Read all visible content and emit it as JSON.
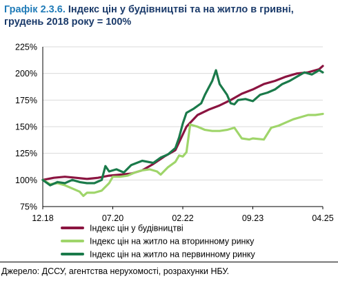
{
  "title": {
    "number": "Графік 2.3.6.",
    "text": "Індекс цін у будівництві та на житло в гривні, грудень 2018 року = 100%"
  },
  "source": "Джерело: ДССУ, агентства нерухомості, розрахунки НБУ.",
  "colors": {
    "construction": "#8b1440",
    "secondary": "#9fd56a",
    "primary": "#1a7a4a",
    "grid": "#d9d9d9"
  },
  "chart_data": {
    "type": "line",
    "xlabel": "",
    "ylabel": "",
    "x_range": [
      "2018-12",
      "2025-04"
    ],
    "ylim": [
      75,
      225
    ],
    "y_ticks": [
      "75%",
      "100%",
      "125%",
      "150%",
      "175%",
      "200%",
      "225%"
    ],
    "x_ticks": [
      {
        "label": "12.18",
        "date": "2018-12"
      },
      {
        "label": "07.20",
        "date": "2020-07"
      },
      {
        "label": "02.22",
        "date": "2022-02"
      },
      {
        "label": "09.23",
        "date": "2023-09"
      },
      {
        "label": "04.25",
        "date": "2025-04"
      }
    ],
    "grid": "horizontal",
    "legend": "bottom",
    "series": [
      {
        "name": "Індекс цін у будівництві",
        "key": "construction",
        "x": [
          "2018-12",
          "2019-03",
          "2019-06",
          "2019-09",
          "2019-12",
          "2020-03",
          "2020-06",
          "2020-09",
          "2020-12",
          "2021-03",
          "2021-06",
          "2021-09",
          "2021-12",
          "2022-03",
          "2022-06",
          "2022-09",
          "2022-12",
          "2023-03",
          "2023-06",
          "2023-09",
          "2023-12",
          "2024-03",
          "2024-06",
          "2024-09",
          "2024-12",
          "2025-03",
          "2025-04"
        ],
        "values": [
          100,
          102,
          103,
          102,
          101,
          102,
          104,
          105,
          106,
          109,
          115,
          122,
          128,
          150,
          161,
          166,
          170,
          175,
          181,
          185,
          190,
          193,
          197,
          200,
          201,
          204,
          207
        ]
      },
      {
        "name": "Індекс цін на житло на вторинному ринку",
        "key": "secondary",
        "x": [
          "2018-12",
          "2019-02",
          "2019-04",
          "2019-06",
          "2019-08",
          "2019-10",
          "2019-11",
          "2019-12",
          "2020-02",
          "2020-04",
          "2020-06",
          "2020-07",
          "2020-09",
          "2020-11",
          "2021-01",
          "2021-03",
          "2021-05",
          "2021-07",
          "2021-08",
          "2021-10",
          "2021-12",
          "2022-01",
          "2022-02",
          "2022-03",
          "2022-04",
          "2022-06",
          "2022-08",
          "2022-10",
          "2022-12",
          "2023-02",
          "2023-04",
          "2023-06",
          "2023-08",
          "2023-09",
          "2023-12",
          "2024-02",
          "2024-04",
          "2024-06",
          "2024-08",
          "2024-10",
          "2024-12",
          "2025-02",
          "2025-04"
        ],
        "values": [
          100,
          96,
          97,
          95,
          92,
          89,
          85,
          88,
          88,
          90,
          97,
          103,
          103,
          104,
          107,
          109,
          110,
          108,
          105,
          112,
          117,
          123,
          122,
          126,
          152,
          150,
          147,
          146,
          146,
          147,
          149,
          139,
          138,
          139,
          138,
          149,
          151,
          154,
          157,
          159,
          161,
          161,
          162
        ]
      },
      {
        "name": "Індекс цін на житло на первинному ринку",
        "key": "primary",
        "x": [
          "2018-12",
          "2019-02",
          "2019-04",
          "2019-06",
          "2019-08",
          "2019-10",
          "2019-12",
          "2020-02",
          "2020-04",
          "2020-05",
          "2020-06",
          "2020-08",
          "2020-10",
          "2020-12",
          "2021-03",
          "2021-06",
          "2021-08",
          "2021-10",
          "2021-12",
          "2022-01",
          "2022-02",
          "2022-03",
          "2022-05",
          "2022-07",
          "2022-08",
          "2022-10",
          "2022-11",
          "2022-12",
          "2023-02",
          "2023-03",
          "2023-04",
          "2023-05",
          "2023-07",
          "2023-09",
          "2023-11",
          "2024-01",
          "2024-03",
          "2024-05",
          "2024-07",
          "2024-09",
          "2024-11",
          "2025-01",
          "2025-03",
          "2025-04"
        ],
        "values": [
          100,
          95,
          98,
          97,
          100,
          98,
          97,
          97,
          100,
          113,
          108,
          110,
          107,
          114,
          118,
          116,
          121,
          124,
          130,
          140,
          153,
          163,
          167,
          172,
          180,
          193,
          203,
          190,
          180,
          172,
          171,
          175,
          176,
          174,
          180,
          182,
          185,
          190,
          193,
          197,
          201,
          199,
          203,
          201
        ]
      }
    ]
  }
}
